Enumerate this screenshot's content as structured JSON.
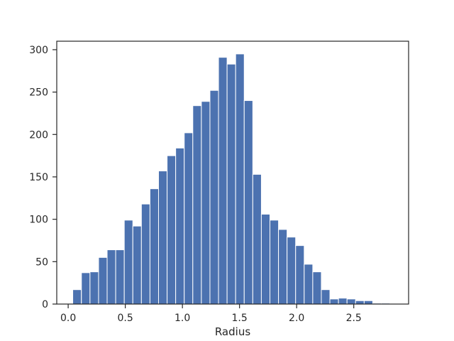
{
  "chart_data": {
    "type": "bar",
    "title": "",
    "xlabel": "Radius",
    "ylabel": "",
    "xlim": [
      -0.1,
      2.98
    ],
    "ylim": [
      0,
      310
    ],
    "grid": false,
    "bar_color": "#4c72b0",
    "bin_width": 0.0751,
    "bins_start": [
      0.04,
      0.116,
      0.191,
      0.266,
      0.341,
      0.416,
      0.491,
      0.566,
      0.641,
      0.716,
      0.791,
      0.866,
      0.941,
      1.016,
      1.091,
      1.166,
      1.241,
      1.316,
      1.391,
      1.466,
      1.541,
      1.616,
      1.691,
      1.766,
      1.841,
      1.916,
      1.991,
      2.066,
      2.141,
      2.216,
      2.291,
      2.366,
      2.441,
      2.516,
      2.591,
      2.666,
      2.741
    ],
    "counts": [
      17,
      37,
      38,
      55,
      64,
      64,
      99,
      92,
      118,
      136,
      157,
      175,
      184,
      202,
      234,
      239,
      252,
      291,
      283,
      295,
      240,
      153,
      106,
      99,
      88,
      79,
      69,
      47,
      38,
      17,
      6,
      7,
      6,
      4,
      4,
      1,
      1
    ],
    "x_ticks": [
      0.0,
      0.5,
      1.0,
      1.5,
      2.0,
      2.5
    ],
    "x_tick_labels": [
      "0.0",
      "0.5",
      "1.0",
      "1.5",
      "2.0",
      "2.5"
    ],
    "y_ticks": [
      0,
      50,
      100,
      150,
      200,
      250,
      300
    ],
    "y_tick_labels": [
      "0",
      "50",
      "100",
      "150",
      "200",
      "250",
      "300"
    ]
  }
}
